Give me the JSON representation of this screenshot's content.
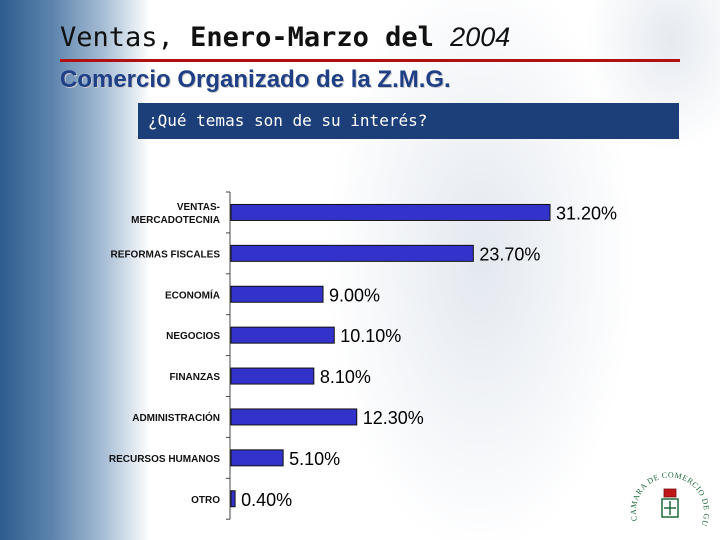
{
  "header": {
    "title_part1": "Ventas,",
    "title_part2": "Enero-Marzo del",
    "title_year": "2004",
    "subtitle": "Comercio Organizado de la Z.M.G.",
    "question": "¿Qué temas son de su interés?"
  },
  "colors": {
    "bar": "#3333cc",
    "bar_border": "#111111",
    "title_rule": "#b01010",
    "subtitle": "#1f3f86",
    "question_bg": "#1c3f7a"
  },
  "logo": {
    "text": "CAMARA DE COMERCIO DE GUADALAJARA"
  },
  "chart_data": {
    "type": "bar",
    "orientation": "horizontal",
    "categories": [
      [
        "VENTAS-",
        "MERCADOTECNIA"
      ],
      [
        "REFORMAS FISCALES"
      ],
      [
        "ECONOMÍA"
      ],
      [
        "NEGOCIOS"
      ],
      [
        "FINANZAS"
      ],
      [
        "ADMINISTRACIÓN"
      ],
      [
        "RECURSOS HUMANOS"
      ],
      [
        "OTRO"
      ]
    ],
    "values": [
      31.2,
      23.7,
      9.0,
      10.1,
      8.1,
      12.3,
      5.1,
      0.4
    ],
    "value_labels": [
      "31.20%",
      "23.70%",
      "9.00%",
      "10.10%",
      "8.10%",
      "12.30%",
      "5.10%",
      "0.40%"
    ],
    "xlim": [
      0,
      31.2
    ],
    "grid": false
  }
}
